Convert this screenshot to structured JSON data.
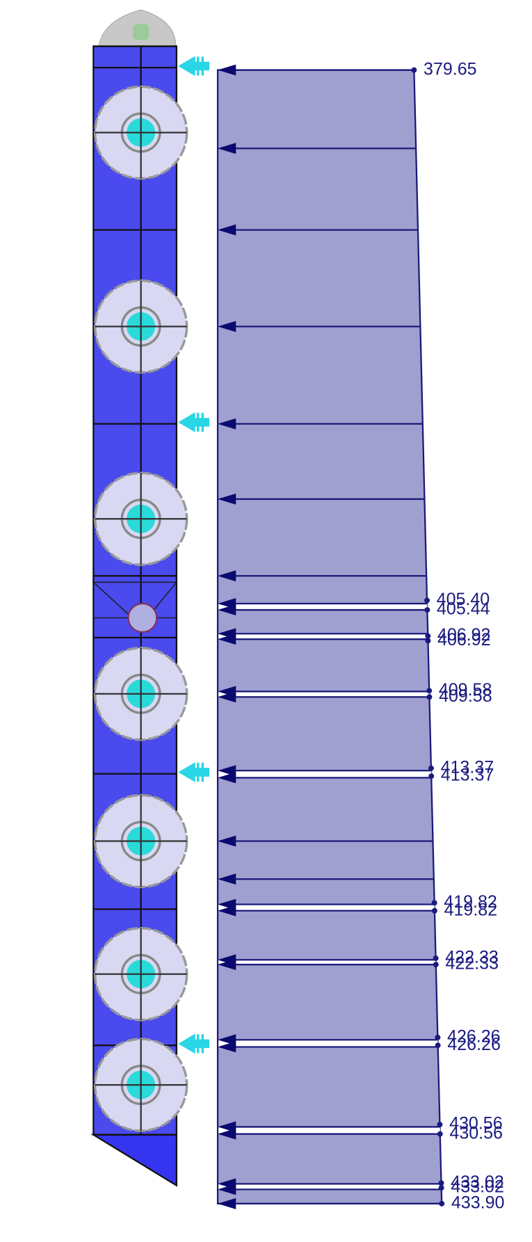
{
  "labels": [
    "379.65",
    "405.40",
    "405.44",
    "406.92",
    "406.92",
    "409.58",
    "409.58",
    "413.37",
    "413.37",
    "419.82",
    "419.82",
    "422.33",
    "422.33",
    "426.26",
    "426.26",
    "430.56",
    "430.56",
    "433.02",
    "433.02",
    "433.90"
  ]
}
